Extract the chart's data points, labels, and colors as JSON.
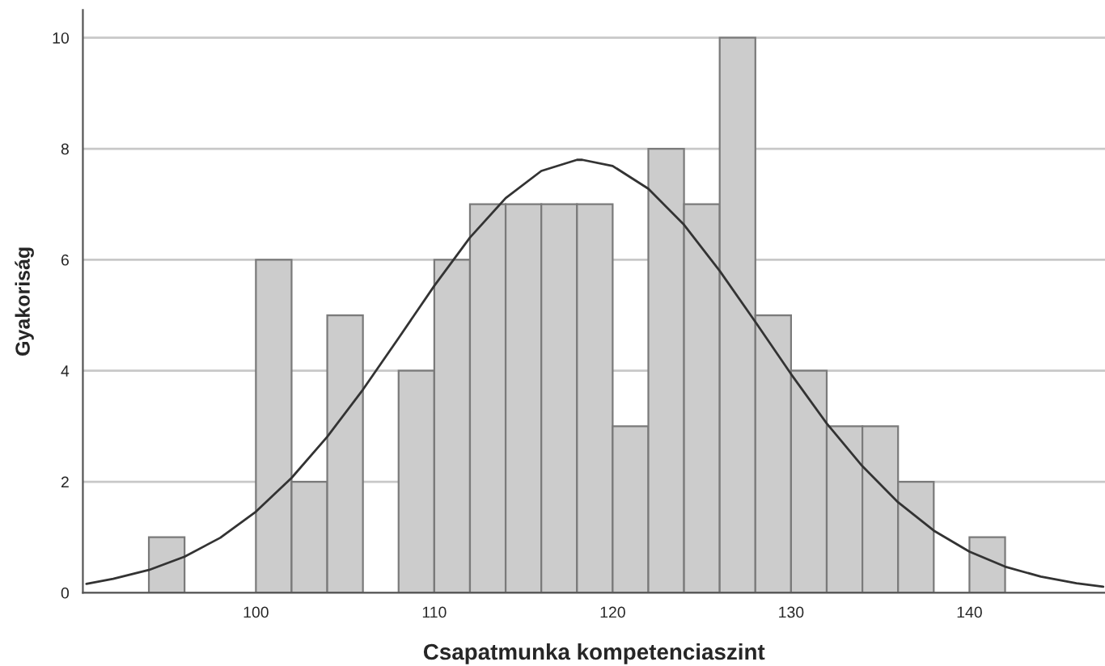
{
  "chart_data": {
    "type": "histogram",
    "xlabel": "Csapatmunka kompetenciaszint",
    "ylabel": "Gyakoriság",
    "bins": [
      94,
      96,
      98,
      100,
      102,
      104,
      106,
      108,
      110,
      112,
      114,
      116,
      118,
      120,
      122,
      124,
      126,
      128,
      130,
      132,
      134,
      136,
      138,
      140,
      142
    ],
    "values": [
      1,
      0,
      0,
      6,
      2,
      5,
      0,
      4,
      6,
      7,
      7,
      7,
      7,
      3,
      8,
      7,
      10,
      5,
      4,
      3,
      3,
      2,
      0,
      1
    ],
    "color": "#cccccc",
    "series": [
      {
        "type": "line",
        "color": "#333333",
        "x": [
          90.5,
          92,
          94,
          96,
          98,
          100,
          102,
          104,
          106,
          108,
          110,
          112,
          114,
          116,
          118,
          118.3,
          120,
          122,
          124,
          126,
          128,
          130,
          132,
          134,
          136,
          138,
          140,
          142,
          144,
          146,
          147.5
        ],
        "values": [
          0.16,
          0.25,
          0.41,
          0.65,
          0.99,
          1.46,
          2.07,
          2.81,
          3.66,
          4.59,
          5.53,
          6.4,
          7.11,
          7.6,
          7.8,
          7.8,
          7.69,
          7.28,
          6.63,
          5.8,
          4.88,
          3.94,
          3.05,
          2.28,
          1.63,
          1.12,
          0.74,
          0.47,
          0.29,
          0.17,
          0.11
        ]
      }
    ],
    "xlim": [
      90.3,
      147.6
    ],
    "xticks": [
      100,
      110,
      120,
      130,
      140
    ],
    "ylim": [
      0,
      10.5
    ],
    "yticks": [
      0,
      2,
      4,
      6,
      8,
      10
    ],
    "grid": "y"
  }
}
